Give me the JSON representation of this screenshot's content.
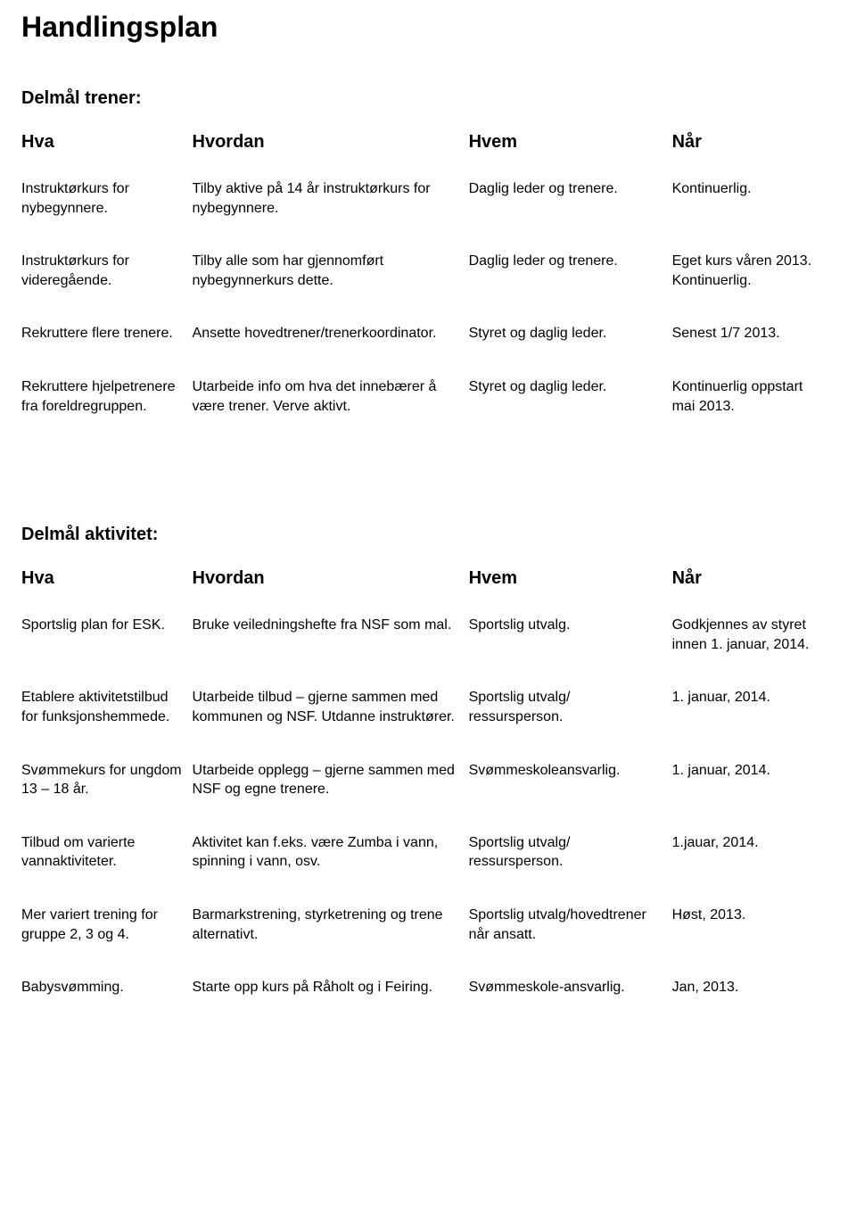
{
  "page": {
    "title": "Handlingsplan",
    "title_fontsize": 32,
    "body_fontsize": 16,
    "header_fontsize": 20,
    "background_color": "#ffffff",
    "text_color": "#000000",
    "font_family": "Arial"
  },
  "headers": {
    "hva": "Hva",
    "hvordan": "Hvordan",
    "hvem": "Hvem",
    "nar": "Når"
  },
  "section_trener": {
    "heading": "Delmål trener:",
    "rows": [
      {
        "hva": "Instruktørkurs for nybegynnere.",
        "hvordan": "Tilby aktive på 14 år instruktørkurs for nybegynnere.",
        "hvem": "Daglig leder og trenere.",
        "nar": "Kontinuerlig."
      },
      {
        "hva": "Instruktørkurs for videregående.",
        "hvordan": "Tilby alle som har gjennomført nybegynnerkurs dette.",
        "hvem": "Daglig leder og trenere.",
        "nar": "Eget kurs våren 2013. Kontinuerlig."
      },
      {
        "hva": "Rekruttere flere trenere.",
        "hvordan": "Ansette hovedtrener/trenerkoordinator.",
        "hvem": "Styret og daglig leder.",
        "nar": "Senest 1/7 2013."
      },
      {
        "hva": "Rekruttere hjelpetrenere fra foreldregruppen.",
        "hvordan": "Utarbeide info om hva det innebærer å være trener. Verve aktivt.",
        "hvem": "Styret og daglig leder.",
        "nar": "Kontinuerlig oppstart mai 2013."
      }
    ]
  },
  "section_aktivitet": {
    "heading": "Delmål aktivitet:",
    "rows": [
      {
        "hva": "Sportslig plan for ESK.",
        "hvordan": "Bruke veiledningshefte fra NSF som mal.",
        "hvem": "Sportslig utvalg.",
        "nar": "Godkjennes av styret innen 1. januar, 2014."
      },
      {
        "hva": "Etablere aktivitetstilbud for funksjonshemmede.",
        "hvordan": "Utarbeide tilbud – gjerne sammen med kommunen og NSF. Utdanne instruktører.",
        "hvem": "Sportslig utvalg/ ressursperson.",
        "nar": "1. januar, 2014."
      },
      {
        "hva": "Svømmekurs for ungdom 13 – 18 år.",
        "hvordan": "Utarbeide opplegg – gjerne sammen med NSF og egne trenere.",
        "hvem": "Svømmeskoleansvarlig.",
        "nar": "1. januar, 2014."
      },
      {
        "hva": "Tilbud om varierte vannaktiviteter.",
        "hvordan": "Aktivitet kan f.eks. være Zumba i vann, spinning i vann, osv.",
        "hvem": "Sportslig utvalg/ ressursperson.",
        "nar": "1.jauar, 2014."
      },
      {
        "hva": "Mer variert trening for gruppe 2, 3 og 4.",
        "hvordan": "Barmarkstrening, styrketrening og trene alternativt.",
        "hvem": "Sportslig utvalg/hovedtrener når ansatt.",
        "nar": "Høst, 2013."
      },
      {
        "hva": "Babysvømming.",
        "hvordan": "Starte opp kurs på Råholt og i Feiring.",
        "hvem": "Svømmeskole-ansvarlig.",
        "nar": "Jan, 2013."
      }
    ]
  }
}
